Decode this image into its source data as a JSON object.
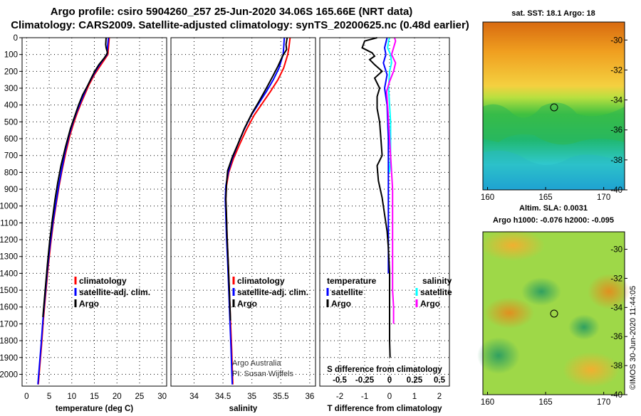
{
  "header": {
    "title_line1": "Argo profile: csiro 5904260_257 25-Jun-2020 34.06S 165.66E (NRT data)",
    "title_line2": "Climatology: CARS2009. Satellite-adjusted climatology: synTS_20200625.nc (0.48d earlier)"
  },
  "colors": {
    "climatology": "#ff0000",
    "satellite": "#0000ff",
    "argo": "#000000",
    "sat_sal": "#00ffff",
    "argo_sal": "#ff00ff"
  },
  "chart_data": [
    {
      "type": "line",
      "id": "temperature",
      "xlabel": "temperature (deg C)",
      "xlim": [
        -1,
        31
      ],
      "xticks": [
        0,
        5,
        10,
        15,
        20,
        25,
        30
      ],
      "ylim": [
        2070,
        0
      ],
      "yticks": [
        0,
        100,
        200,
        300,
        400,
        500,
        600,
        700,
        800,
        900,
        1000,
        1100,
        1200,
        1300,
        1400,
        1500,
        1600,
        1700,
        1800,
        1900,
        2000
      ],
      "legend": [
        "climatology",
        "satellite-adj. clim.",
        "Argo"
      ],
      "series": [
        {
          "name": "climatology",
          "color": "#ff0000",
          "points": [
            [
              18.3,
              0
            ],
            [
              18.1,
              60
            ],
            [
              18.0,
              100
            ],
            [
              17.0,
              140
            ],
            [
              16.0,
              180
            ],
            [
              15.0,
              220
            ],
            [
              13.8,
              280
            ],
            [
              13.0,
              330
            ],
            [
              12.2,
              380
            ],
            [
              11.3,
              440
            ],
            [
              10.5,
              500
            ],
            [
              9.6,
              580
            ],
            [
              8.7,
              680
            ],
            [
              7.9,
              780
            ],
            [
              7.2,
              880
            ],
            [
              6.6,
              980
            ],
            [
              5.9,
              1100
            ],
            [
              5.3,
              1230
            ],
            [
              4.7,
              1380
            ],
            [
              4.2,
              1530
            ],
            [
              3.7,
              1680
            ],
            [
              3.3,
              1830
            ],
            [
              2.9,
              1960
            ],
            [
              2.6,
              2060
            ]
          ]
        },
        {
          "name": "satellite-adj. clim.",
          "color": "#0000ff",
          "points": [
            [
              18.1,
              0
            ],
            [
              17.9,
              60
            ],
            [
              17.8,
              100
            ],
            [
              16.7,
              140
            ],
            [
              15.7,
              180
            ],
            [
              14.8,
              220
            ],
            [
              13.6,
              280
            ],
            [
              12.8,
              330
            ],
            [
              12.0,
              380
            ],
            [
              11.1,
              440
            ],
            [
              10.3,
              500
            ],
            [
              9.4,
              580
            ],
            [
              8.5,
              680
            ],
            [
              7.8,
              780
            ],
            [
              7.1,
              880
            ],
            [
              6.5,
              980
            ],
            [
              5.8,
              1100
            ],
            [
              5.2,
              1230
            ],
            [
              4.6,
              1380
            ],
            [
              4.1,
              1530
            ],
            [
              3.6,
              1680
            ],
            [
              3.2,
              1830
            ],
            [
              2.8,
              1960
            ],
            [
              2.5,
              2060
            ]
          ]
        },
        {
          "name": "Argo",
          "color": "#000000",
          "points": [
            [
              17.6,
              0
            ],
            [
              17.5,
              40
            ],
            [
              17.6,
              60
            ],
            [
              17.9,
              90
            ],
            [
              17.2,
              120
            ],
            [
              16.0,
              160
            ],
            [
              15.1,
              200
            ],
            [
              14.5,
              230
            ],
            [
              13.6,
              280
            ],
            [
              12.4,
              340
            ],
            [
              11.5,
              400
            ],
            [
              10.6,
              470
            ],
            [
              9.7,
              540
            ],
            [
              8.6,
              650
            ],
            [
              7.6,
              760
            ],
            [
              6.9,
              860
            ],
            [
              6.3,
              960
            ],
            [
              5.7,
              1080
            ],
            [
              5.1,
              1210
            ],
            [
              4.6,
              1350
            ],
            [
              4.1,
              1500
            ],
            [
              3.6,
              1660
            ]
          ]
        }
      ],
      "annotations": []
    },
    {
      "type": "line",
      "id": "salinity",
      "xlabel": "salinity",
      "xlim": [
        33.6,
        36.1
      ],
      "xticks": [
        34,
        34.5,
        35,
        35.5,
        36
      ],
      "xticklabels": [
        "34",
        "34.5",
        "35",
        "35.5",
        "36"
      ],
      "ylim": [
        2070,
        0
      ],
      "legend": [
        "climatology",
        "satellite-adj. clim.",
        "Argo"
      ],
      "series": [
        {
          "name": "climatology",
          "color": "#ff0000",
          "points": [
            [
              35.66,
              0
            ],
            [
              35.64,
              60
            ],
            [
              35.62,
              100
            ],
            [
              35.55,
              180
            ],
            [
              35.45,
              250
            ],
            [
              35.32,
              320
            ],
            [
              35.18,
              390
            ],
            [
              35.04,
              460
            ],
            [
              34.9,
              550
            ],
            [
              34.78,
              640
            ],
            [
              34.68,
              720
            ],
            [
              34.6,
              800
            ],
            [
              34.56,
              880
            ],
            [
              34.55,
              960
            ],
            [
              34.56,
              1060
            ],
            [
              34.57,
              1180
            ],
            [
              34.59,
              1330
            ],
            [
              34.61,
              1500
            ],
            [
              34.63,
              1680
            ],
            [
              34.65,
              1850
            ],
            [
              34.67,
              2060
            ]
          ]
        },
        {
          "name": "satellite-adj. clim.",
          "color": "#0000ff",
          "points": [
            [
              35.56,
              0
            ],
            [
              35.55,
              60
            ],
            [
              35.54,
              100
            ],
            [
              35.47,
              180
            ],
            [
              35.37,
              250
            ],
            [
              35.25,
              320
            ],
            [
              35.12,
              390
            ],
            [
              34.99,
              460
            ],
            [
              34.86,
              550
            ],
            [
              34.75,
              640
            ],
            [
              34.66,
              720
            ],
            [
              34.59,
              800
            ],
            [
              34.55,
              880
            ],
            [
              34.54,
              960
            ],
            [
              34.55,
              1060
            ],
            [
              34.56,
              1180
            ],
            [
              34.58,
              1330
            ],
            [
              34.6,
              1500
            ],
            [
              34.62,
              1680
            ],
            [
              34.64,
              1850
            ],
            [
              34.66,
              2060
            ]
          ]
        },
        {
          "name": "Argo",
          "color": "#000000",
          "points": [
            [
              35.61,
              0
            ],
            [
              35.59,
              40
            ],
            [
              35.6,
              70
            ],
            [
              35.53,
              110
            ],
            [
              35.45,
              170
            ],
            [
              35.36,
              230
            ],
            [
              35.25,
              300
            ],
            [
              35.12,
              380
            ],
            [
              35.0,
              450
            ],
            [
              34.87,
              540
            ],
            [
              34.76,
              630
            ],
            [
              34.66,
              710
            ],
            [
              34.58,
              790
            ],
            [
              34.56,
              870
            ],
            [
              34.55,
              960
            ],
            [
              34.56,
              1060
            ],
            [
              34.57,
              1180
            ],
            [
              34.59,
              1330
            ],
            [
              34.61,
              1500
            ],
            [
              34.63,
              1680
            ]
          ]
        }
      ],
      "annotations": [
        "Argo Australia",
        "PI: Susan Wijffels"
      ]
    },
    {
      "type": "line",
      "id": "difference",
      "xlabel": "T difference from climatology",
      "xlim": [
        -2.8,
        2.4
      ],
      "xticks": [
        -2,
        -1,
        0,
        1,
        2
      ],
      "ylim": [
        2070,
        0
      ],
      "secondary_axis": {
        "label": "S difference from climatology",
        "ticks": [
          -0.5,
          -0.25,
          0,
          0.25,
          0.5
        ],
        "ticklabels": [
          "-0.5",
          "-0.25",
          "0",
          "0.25",
          "0.5"
        ],
        "xlim": [
          -0.7,
          0.6
        ]
      },
      "legend_titles": [
        "temperature",
        "salinity"
      ],
      "legend": [
        "satellite",
        "Argo",
        "satellite",
        "Argo"
      ],
      "series": [
        {
          "name": "temperature satellite",
          "axis": "T",
          "color": "#0000ff",
          "points": [
            [
              -0.1,
              0
            ],
            [
              -0.2,
              60
            ],
            [
              -0.15,
              100
            ],
            [
              -0.25,
              150
            ],
            [
              -0.1,
              220
            ],
            [
              -0.2,
              300
            ],
            [
              -0.1,
              400
            ],
            [
              -0.05,
              600
            ],
            [
              -0.05,
              800
            ],
            [
              -0.05,
              1000
            ],
            [
              -0.05,
              1200
            ],
            [
              -0.05,
              1400
            ]
          ]
        },
        {
          "name": "temperature Argo",
          "axis": "T",
          "color": "#000000",
          "points": [
            [
              -0.5,
              0
            ],
            [
              -1.0,
              20
            ],
            [
              -1.1,
              60
            ],
            [
              -0.7,
              90
            ],
            [
              -0.6,
              110
            ],
            [
              -0.8,
              130
            ],
            [
              -0.6,
              160
            ],
            [
              -0.3,
              200
            ],
            [
              -0.6,
              240
            ],
            [
              -0.4,
              300
            ],
            [
              -0.5,
              350
            ],
            [
              -0.5,
              420
            ],
            [
              -0.4,
              500
            ],
            [
              -0.35,
              600
            ],
            [
              -0.3,
              700
            ],
            [
              -0.5,
              760
            ],
            [
              -0.45,
              850
            ],
            [
              -0.3,
              950
            ],
            [
              -0.2,
              1050
            ],
            [
              -0.1,
              1150
            ],
            [
              -0.05,
              1250
            ],
            [
              0.0,
              1400
            ],
            [
              0.0,
              1600
            ],
            [
              0.0,
              1800
            ],
            [
              0.02,
              1900
            ]
          ]
        },
        {
          "name": "salinity satellite",
          "axis": "S",
          "color": "#00ffff",
          "points": [
            [
              0.0,
              0
            ],
            [
              -0.01,
              20
            ],
            [
              -0.02,
              60
            ],
            [
              0.01,
              100
            ],
            [
              0.02,
              150
            ],
            [
              0.0,
              200
            ],
            [
              -0.01,
              300
            ],
            [
              0.01,
              500
            ],
            [
              0.01,
              700
            ],
            [
              0.0,
              800
            ]
          ]
        },
        {
          "name": "salinity Argo",
          "axis": "S",
          "color": "#ff00ff",
          "points": [
            [
              0.05,
              0
            ],
            [
              0.06,
              20
            ],
            [
              0.04,
              60
            ],
            [
              0.02,
              100
            ],
            [
              0.06,
              150
            ],
            [
              0.04,
              200
            ],
            [
              0.0,
              260
            ],
            [
              -0.03,
              320
            ],
            [
              -0.02,
              400
            ],
            [
              -0.01,
              500
            ],
            [
              0.0,
              600
            ],
            [
              0.01,
              700
            ],
            [
              0.02,
              800
            ],
            [
              0.03,
              900
            ],
            [
              0.03,
              1000
            ],
            [
              0.03,
              1100
            ],
            [
              0.03,
              1200
            ],
            [
              0.03,
              1300
            ],
            [
              0.03,
              1400
            ],
            [
              0.03,
              1500
            ],
            [
              0.04,
              1600
            ],
            [
              0.04,
              1700
            ]
          ]
        }
      ],
      "annotations": []
    }
  ],
  "maps": [
    {
      "id": "sst-map",
      "title": "sat. SST: 18.1 Argo: 18",
      "xticks": [
        "160",
        "165",
        "170"
      ],
      "yticks": [
        "-30",
        "-32",
        "-34",
        "-36",
        "-38",
        "-40"
      ],
      "marker": {
        "lon": 165.66,
        "lat": -34.06
      }
    },
    {
      "id": "sla-map",
      "title_line1": "Altim. SLA: 0.0031",
      "title_line2": "Argo h1000: -0.076 h2000: -0.095",
      "xticks": [
        "160",
        "165",
        "170"
      ],
      "yticks": [
        "-30",
        "-32",
        "-34",
        "-36",
        "-38",
        "-40"
      ],
      "marker": {
        "lon": 165.66,
        "lat": -34.06
      }
    }
  ],
  "footer": {
    "credit": "©IMOS 30-Jun-2020 11:44:05"
  }
}
